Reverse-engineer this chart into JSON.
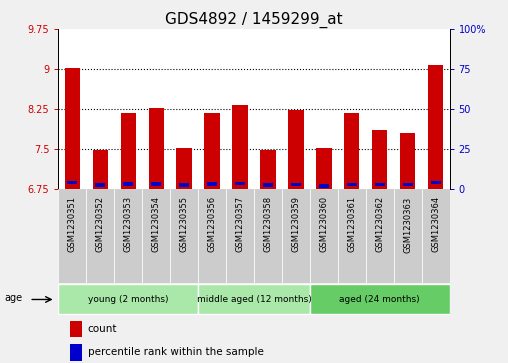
{
  "title": "GDS4892 / 1459299_at",
  "samples": [
    "GSM1230351",
    "GSM1230352",
    "GSM1230353",
    "GSM1230354",
    "GSM1230355",
    "GSM1230356",
    "GSM1230357",
    "GSM1230358",
    "GSM1230359",
    "GSM1230360",
    "GSM1230361",
    "GSM1230362",
    "GSM1230363",
    "GSM1230364"
  ],
  "red_values": [
    9.02,
    7.47,
    8.17,
    8.27,
    7.52,
    8.18,
    8.33,
    7.47,
    8.23,
    7.52,
    8.17,
    7.85,
    7.8,
    9.08
  ],
  "blue_values": [
    6.87,
    6.82,
    6.84,
    6.84,
    6.82,
    6.84,
    6.85,
    6.82,
    6.83,
    6.8,
    6.83,
    6.83,
    6.83,
    6.87
  ],
  "ylim_left": [
    6.75,
    9.75
  ],
  "yticks_left": [
    6.75,
    7.5,
    8.25,
    9.0,
    9.75
  ],
  "ytick_labels_left": [
    "6.75",
    "7.5",
    "8.25",
    "9",
    "9.75"
  ],
  "ylim_right": [
    0,
    100
  ],
  "yticks_right": [
    0,
    25,
    50,
    75,
    100
  ],
  "ytick_labels_right": [
    "0",
    "25",
    "50",
    "75",
    "100%"
  ],
  "bar_base": 6.75,
  "bar_width": 0.55,
  "group_labels": [
    "young (2 months)",
    "middle aged (12 months)",
    "aged (24 months)"
  ],
  "group_ranges": [
    [
      0,
      5
    ],
    [
      5,
      9
    ],
    [
      9,
      14
    ]
  ],
  "group_colors": [
    "#aae8aa",
    "#aae8aa",
    "#66cc66"
  ],
  "red_color": "#cc0000",
  "blue_color": "#0000cc",
  "plot_bg": "#ffffff",
  "grid_color": "#000000",
  "title_fontsize": 11,
  "tick_fontsize": 7,
  "label_fontsize": 8,
  "gridline_yticks": [
    7.5,
    8.25,
    9.0
  ],
  "sample_col_bg": "#cccccc",
  "sample_col_sep": "#ffffff"
}
